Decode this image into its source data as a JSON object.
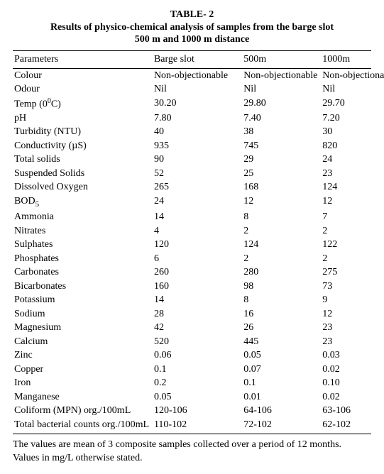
{
  "title": {
    "line1": "TABLE- 2",
    "line2": "Results of physico-chemical analysis of samples from the barge slot",
    "line3": "500 m and 1000 m distance"
  },
  "columns": [
    "Parameters",
    "Barge slot",
    "500m",
    "1000m"
  ],
  "rows": [
    {
      "p": "Colour",
      "a": "Non-objectionable",
      "b": "Non-objectionable",
      "c": "Non-objectionable"
    },
    {
      "p": "Odour",
      "a": "Nil",
      "b": "Nil",
      "c": "Nil"
    },
    {
      "p": "Temp (0",
      "p_sup": "0",
      "p_tail": "C)",
      "a": "30.20",
      "b": "29.80",
      "c": "29.70"
    },
    {
      "p": "pH",
      "a": "7.80",
      "b": "7.40",
      "c": "7.20"
    },
    {
      "p": "Turbidity (NTU)",
      "a": "40",
      "b": "38",
      "c": "30"
    },
    {
      "p": "Conductivity (µS)",
      "a": "935",
      "b": "745",
      "c": "820"
    },
    {
      "p": "Total solids",
      "a": "90",
      "b": "29",
      "c": "24"
    },
    {
      "p": "Suspended Solids",
      "a": "52",
      "b": "25",
      "c": "23"
    },
    {
      "p": "Dissolved Oxygen",
      "a": "265",
      "b": "168",
      "c": "124"
    },
    {
      "p": "BOD",
      "p_sub": "5",
      "a": "24",
      "b": "12",
      "c": "12"
    },
    {
      "p": "Ammonia",
      "a": "14",
      "b": "8",
      "c": "7"
    },
    {
      "p": "Nitrates",
      "a": "4",
      "b": "2",
      "c": "2"
    },
    {
      "p": "Sulphates",
      "a": "120",
      "b": "124",
      "c": "122"
    },
    {
      "p": "Phosphates",
      "a": "6",
      "b": "2",
      "c": "2"
    },
    {
      "p": "Carbonates",
      "a": "260",
      "b": "280",
      "c": "275"
    },
    {
      "p": "Bicarbonates",
      "a": "160",
      "b": "98",
      "c": "73"
    },
    {
      "p": "Potassium",
      "a": "14",
      "b": "8",
      "c": "9"
    },
    {
      "p": "Sodium",
      "a": "28",
      "b": "16",
      "c": "12"
    },
    {
      "p": "Magnesium",
      "a": "42",
      "b": "26",
      "c": "23"
    },
    {
      "p": "Calcium",
      "a": "520",
      "b": "445",
      "c": "23"
    },
    {
      "p": "Zinc",
      "a": "0.06",
      "b": "0.05",
      "c": "0.03"
    },
    {
      "p": "Copper",
      "a": "0.1",
      "b": "0.07",
      "c": "0.02"
    },
    {
      "p": "Iron",
      "a": "0.2",
      "b": "0.1",
      "c": "0.10"
    },
    {
      "p": "Manganese",
      "a": "0.05",
      "b": "0.01",
      "c": "0.02"
    },
    {
      "p": "Coliform (MPN) org./100mL",
      "a": "120-106",
      "b": "64-106",
      "c": "63-106"
    },
    {
      "p": "Total bacterial counts org./100mL",
      "a": "110-102",
      "b": "72-102",
      "c": "62-102"
    }
  ],
  "notes": {
    "line1": "The values are mean of 3 composite samples collected over a period of 12 months.",
    "line2": "Values in mg/L otherwise stated."
  }
}
